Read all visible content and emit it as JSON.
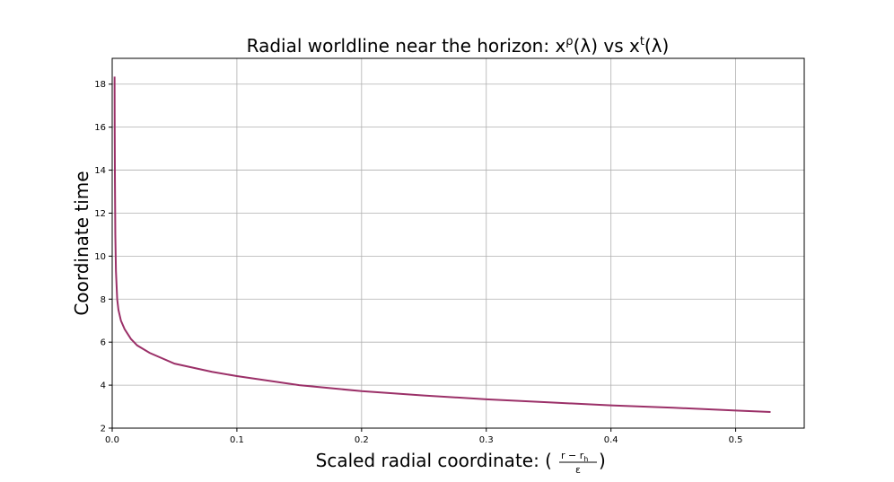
{
  "chart_data": {
    "type": "line",
    "title": {
      "main": "Radial worldline near the horizon: x",
      "sup1": "ρ",
      "mid": "(λ) vs x",
      "sup2": "t",
      "end": "(λ)"
    },
    "xlabel": {
      "prefix": "Scaled radial coordinate: (",
      "frac_num": "r − r",
      "frac_num_sub": "h",
      "frac_den": "ε",
      "suffix": ")"
    },
    "ylabel": "Coordinate time",
    "xlim": [
      0.0,
      0.555
    ],
    "ylim": [
      2.0,
      19.2
    ],
    "xticks": [
      0.0,
      0.1,
      0.2,
      0.3,
      0.4,
      0.5
    ],
    "xtick_labels": [
      "0.0",
      "0.1",
      "0.2",
      "0.3",
      "0.4",
      "0.5"
    ],
    "yticks": [
      2,
      4,
      6,
      8,
      10,
      12,
      14,
      16,
      18
    ],
    "ytick_labels": [
      "2",
      "4",
      "6",
      "8",
      "10",
      "12",
      "14",
      "16",
      "18"
    ],
    "grid": true,
    "line_color": "#9b3068",
    "series": [
      {
        "x": [
          0.0019,
          0.002,
          0.0022,
          0.0025,
          0.003,
          0.004,
          0.005,
          0.007,
          0.01,
          0.015,
          0.02,
          0.03,
          0.05,
          0.08,
          0.1,
          0.15,
          0.2,
          0.25,
          0.3,
          0.35,
          0.4,
          0.45,
          0.5,
          0.528
        ],
        "y": [
          18.35,
          16.0,
          13.5,
          11.0,
          9.3,
          8.0,
          7.5,
          7.0,
          6.6,
          6.15,
          5.85,
          5.5,
          5.0,
          4.62,
          4.42,
          4.0,
          3.72,
          3.52,
          3.34,
          3.2,
          3.06,
          2.95,
          2.82,
          2.75
        ]
      }
    ]
  }
}
